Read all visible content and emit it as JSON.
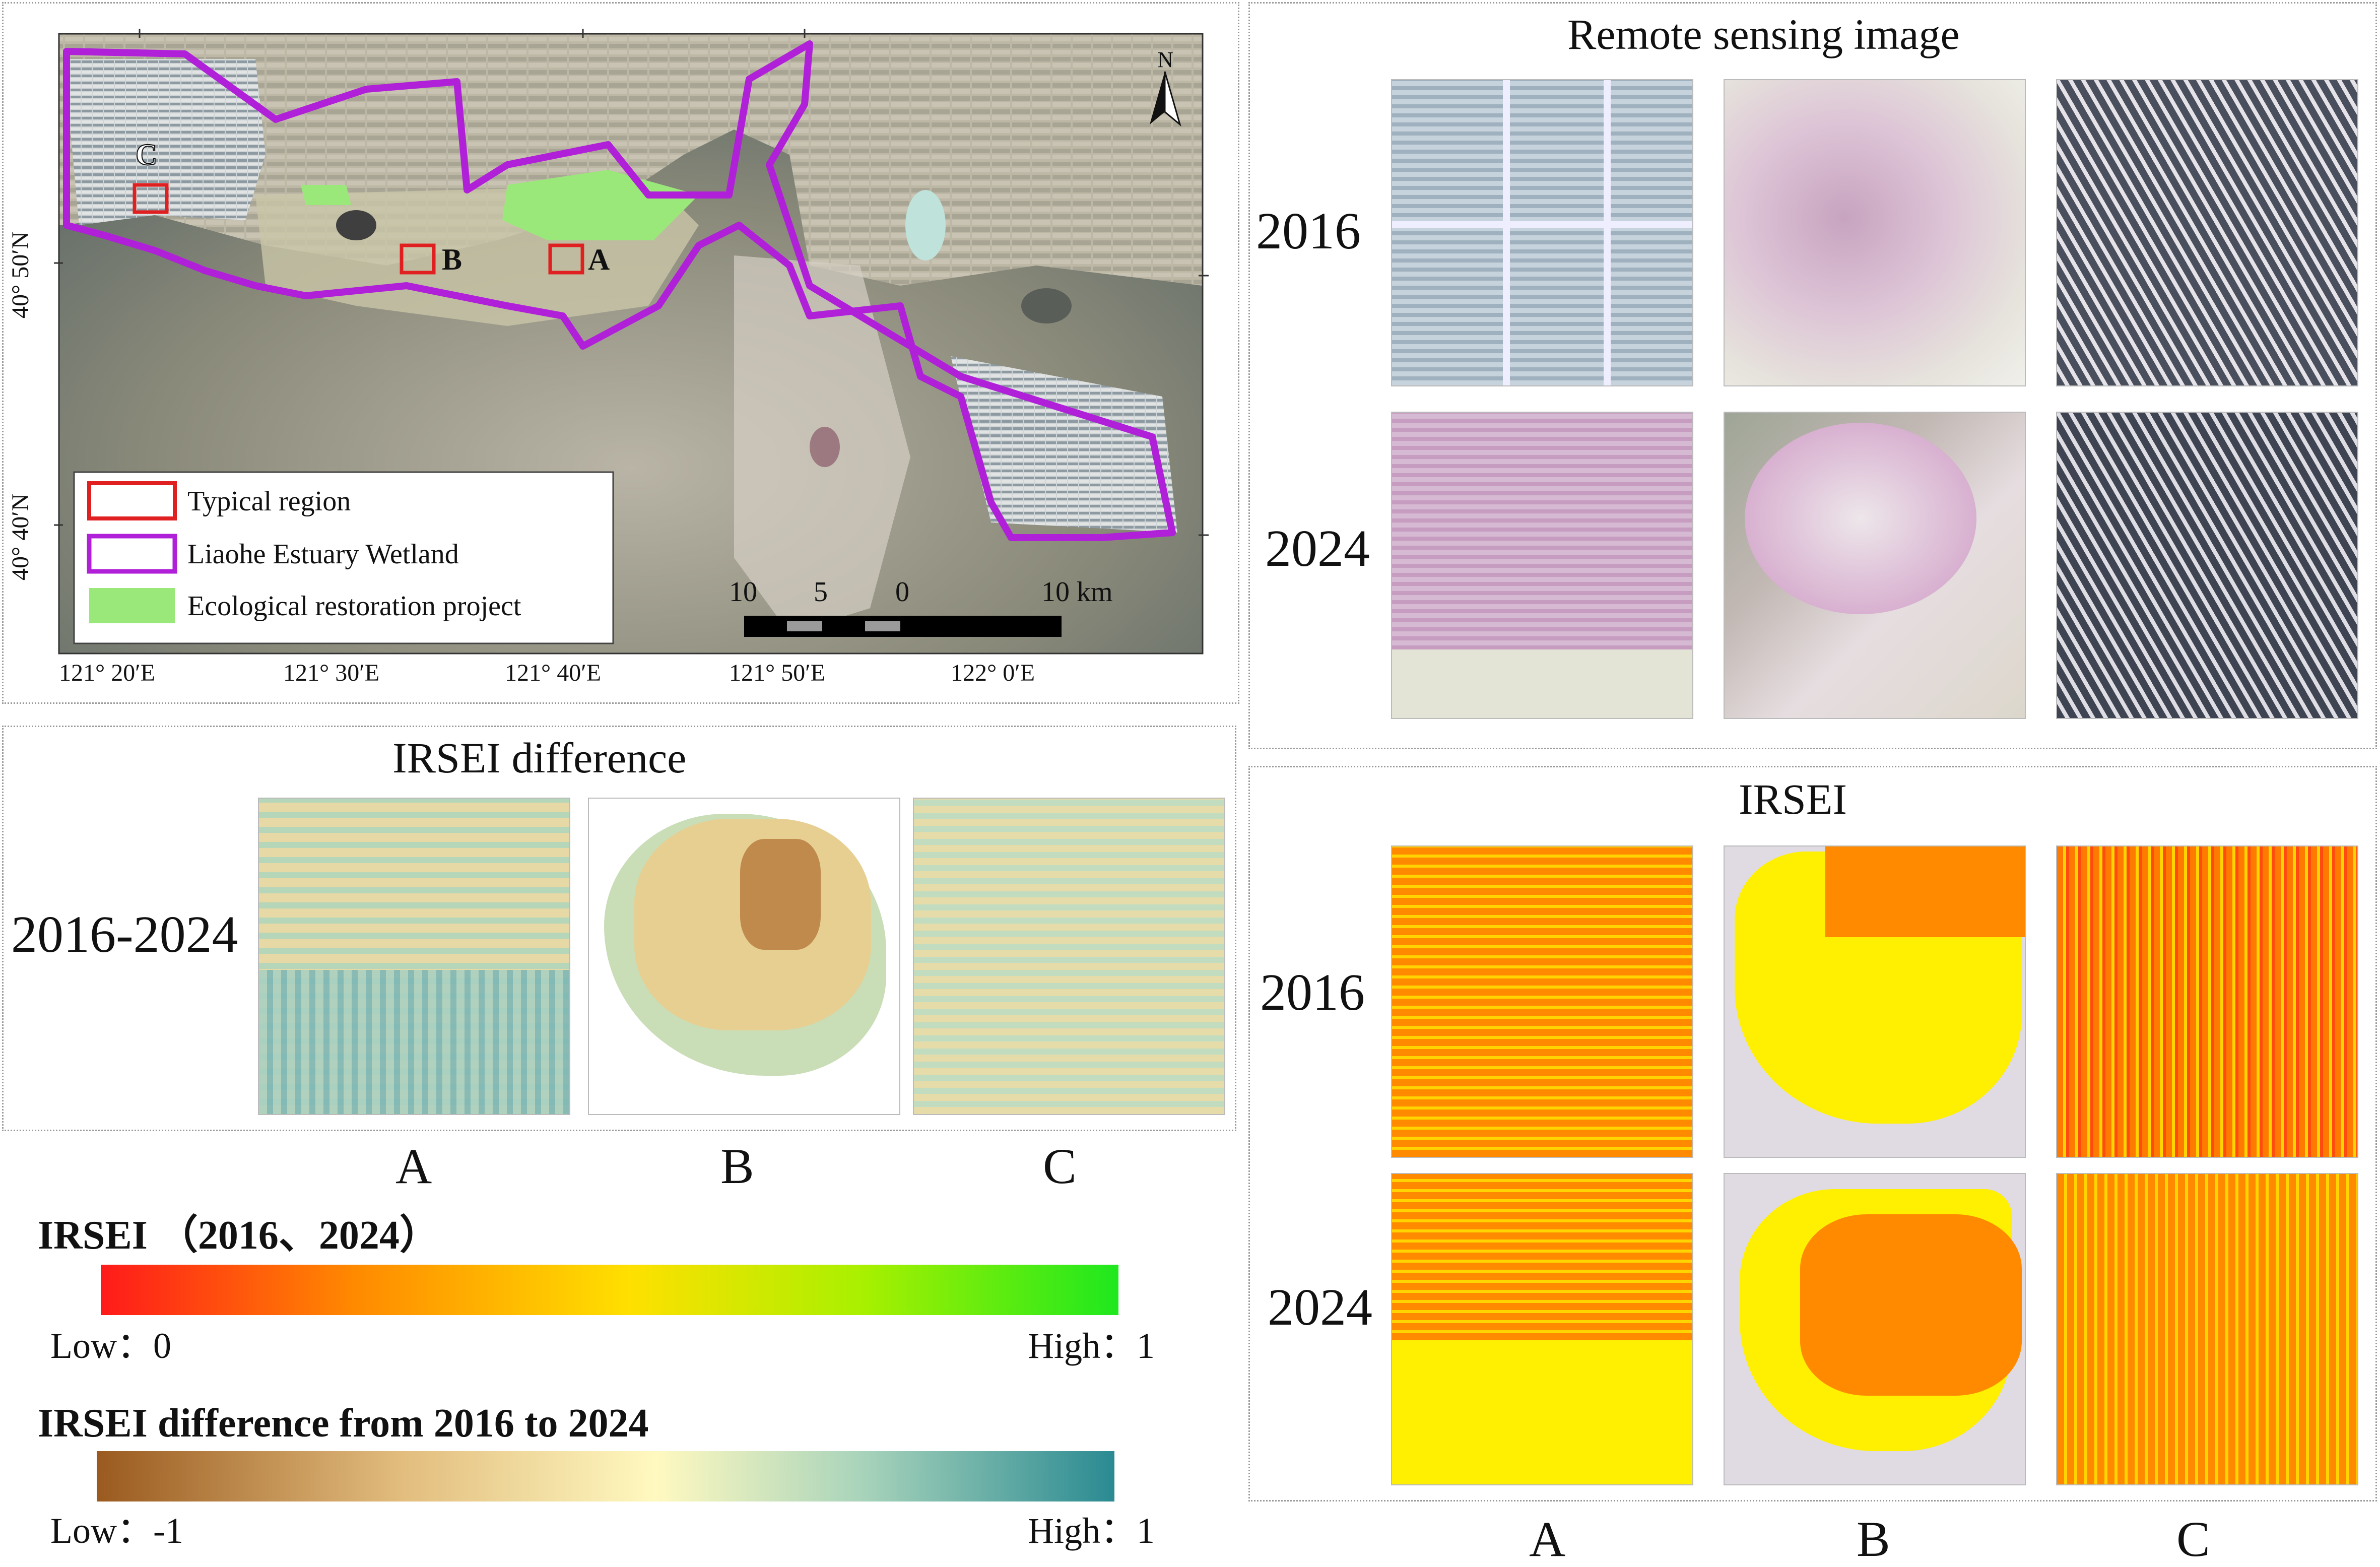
{
  "colors": {
    "typical_region": "#e02020",
    "wetland_boundary": "#b020d8",
    "restoration": "#9be87a",
    "irsei_low": "#ff1a1a",
    "irsei_mid": "#ffe000",
    "irsei_high": "#1ee81e",
    "diff_low": "#9a5a1f",
    "diff_mid": "#fff9c0",
    "diff_high": "#2a8a92"
  },
  "map": {
    "north_label": "N",
    "region_labels": [
      "C",
      "B",
      "A"
    ],
    "lat_ticks": [
      "40° 50′N",
      "40° 40′N"
    ],
    "lon_ticks": [
      "121° 20′E",
      "121° 30′E",
      "121° 40′E",
      "121° 50′E",
      "122° 0′E"
    ],
    "scale_labels": [
      "10",
      "5",
      "0",
      "10 km"
    ],
    "legend": [
      {
        "label": "Typical region",
        "icon": "red-rectangle-icon"
      },
      {
        "label": "Liaohe Estuary Wetland",
        "icon": "purple-rectangle-icon"
      },
      {
        "label": "Ecological restoration project",
        "icon": "green-patch-icon"
      }
    ]
  },
  "remote": {
    "title": "Remote sensing image",
    "rows": [
      "2016",
      "2024"
    ]
  },
  "irsei": {
    "title": "IRSEI",
    "rows": [
      "2016",
      "2024"
    ],
    "cols": [
      "A",
      "B",
      "C"
    ]
  },
  "diff": {
    "title": "IRSEI difference",
    "row": "2016-2024",
    "cols": [
      "A",
      "B",
      "C"
    ]
  },
  "legend_irsei": {
    "title": "IRSEI （2016、2024）",
    "low": "Low：0",
    "high": "High：1"
  },
  "legend_diff": {
    "title": "IRSEI difference from 2016 to 2024",
    "low": "Low：-1",
    "high": "High：1"
  }
}
